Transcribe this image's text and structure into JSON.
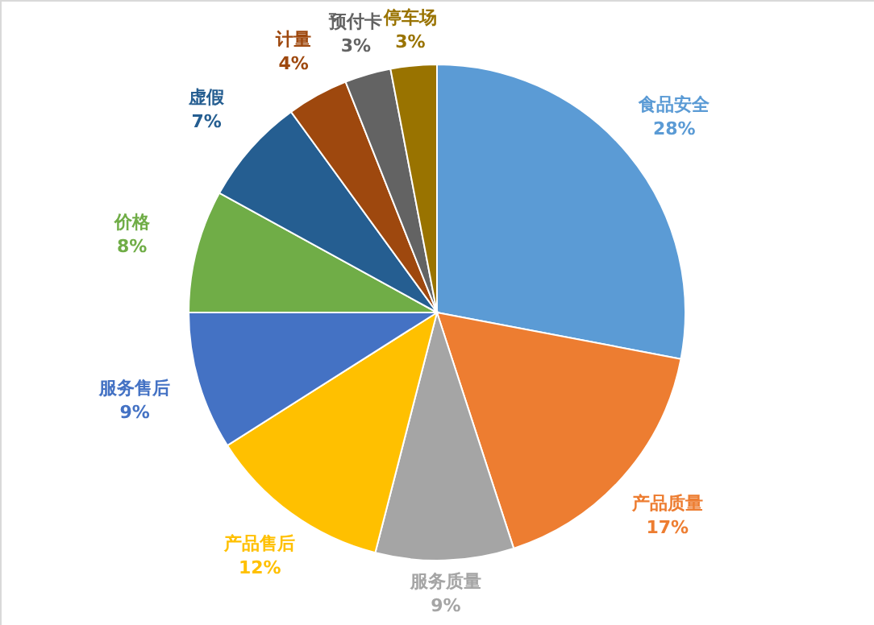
{
  "chart_data": {
    "type": "pie",
    "categories": [
      "食品安全",
      "产品质量",
      "服务质量",
      "产品售后",
      "服务售后",
      "价格",
      "虚假",
      "计量",
      "预付卡",
      "停车场"
    ],
    "values": [
      28,
      17,
      9,
      12,
      9,
      8,
      7,
      4,
      3,
      3
    ],
    "colors": [
      "#5b9bd5",
      "#ed7d31",
      "#a5a5a5",
      "#ffc000",
      "#4472c4",
      "#70ad47",
      "#255e91",
      "#9e480e",
      "#636363",
      "#997300"
    ],
    "value_labels": [
      "28%",
      "17%",
      "9%",
      "12%",
      "9%",
      "8%",
      "7%",
      "4%",
      "3%",
      "3%"
    ]
  }
}
